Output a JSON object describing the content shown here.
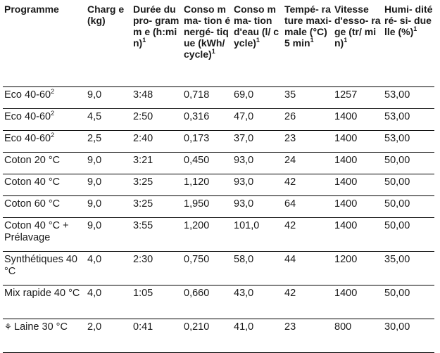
{
  "headers": [
    {
      "text": "Programme",
      "sup": ""
    },
    {
      "text": "Charg e (kg)",
      "sup": ""
    },
    {
      "text": "Durée du pro- gramm e (h:min)",
      "sup": "1"
    },
    {
      "text": "Conso mma- tion énergé- tique (kWh/ cycle)",
      "sup": "1"
    },
    {
      "text": "Conso mma- tion d'eau (l/ cycle)",
      "sup": "1"
    },
    {
      "text": "Tempé- rature maxi- male (°C) 5 min",
      "sup": "1"
    },
    {
      "text": "Vitesse d'esso- rage (tr/ min)",
      "sup": "1"
    },
    {
      "text": "Humi- dité ré- si- duelle (%)",
      "sup": "1"
    }
  ],
  "rows": [
    {
      "programme": "Eco 40-60",
      "sup": "2",
      "icon": "",
      "charge": "9,0",
      "duree": "3:48",
      "energie": "0,718",
      "eau": "69,0",
      "temp": "35",
      "vitesse": "1257",
      "humidite": "53,00"
    },
    {
      "programme": "Eco 40-60",
      "sup": "2",
      "icon": "",
      "charge": "4,5",
      "duree": "2:50",
      "energie": "0,316",
      "eau": "47,0",
      "temp": "26",
      "vitesse": "1400",
      "humidite": "53,00"
    },
    {
      "programme": "Eco 40-60",
      "sup": "2",
      "icon": "",
      "charge": "2,5",
      "duree": "2:40",
      "energie": "0,173",
      "eau": "37,0",
      "temp": "23",
      "vitesse": "1400",
      "humidite": "53,00"
    },
    {
      "programme": "Coton 20 °C",
      "sup": "",
      "icon": "",
      "charge": "9,0",
      "duree": "3:21",
      "energie": "0,450",
      "eau": "93,0",
      "temp": "24",
      "vitesse": "1400",
      "humidite": "50,00"
    },
    {
      "programme": "Coton 40 °C",
      "sup": "",
      "icon": "",
      "charge": "9,0",
      "duree": "3:25",
      "energie": "1,120",
      "eau": "93,0",
      "temp": "42",
      "vitesse": "1400",
      "humidite": "50,00"
    },
    {
      "programme": "Coton 60 °C",
      "sup": "",
      "icon": "",
      "charge": "9,0",
      "duree": "3:25",
      "energie": "1,950",
      "eau": "93,0",
      "temp": "64",
      "vitesse": "1400",
      "humidite": "50,00"
    },
    {
      "programme": "Coton 40 °C + Prélavage",
      "sup": "",
      "icon": "",
      "charge": "9,0",
      "duree": "3:55",
      "energie": "1,200",
      "eau": "101,0",
      "temp": "42",
      "vitesse": "1400",
      "humidite": "50,00"
    },
    {
      "programme": "Synthétiques 40 °C",
      "sup": "",
      "icon": "",
      "charge": "4,0",
      "duree": "2:30",
      "energie": "0,750",
      "eau": "58,0",
      "temp": "44",
      "vitesse": "1200",
      "humidite": "35,00"
    },
    {
      "programme": "Mix rapide 40 °C",
      "sup": "",
      "icon": "",
      "charge": "4,0",
      "duree": "1:05",
      "energie": "0,660",
      "eau": "43,0",
      "temp": "42",
      "vitesse": "1400",
      "humidite": "50,00"
    },
    {
      "programme": "Laine 30 °C",
      "sup": "",
      "icon": "wool-hand-wash-icon",
      "charge": "2,0",
      "duree": "0:41",
      "energie": "0,210",
      "eau": "41,0",
      "temp": "23",
      "vitesse": "800",
      "humidite": "30,00"
    }
  ]
}
